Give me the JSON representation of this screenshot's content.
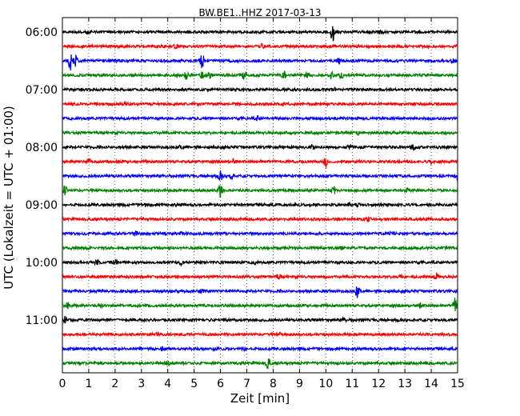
{
  "chart_data": {
    "type": "line",
    "title": "BW.BE1..HHZ 2017-03-13",
    "xlabel": "Zeit  [min]",
    "ylabel": "UTC (Lokalzeit = UTC + 01:00)",
    "xlim": [
      0,
      15
    ],
    "x_ticks": [
      "0",
      "1",
      "2",
      "3",
      "4",
      "5",
      "6",
      "7",
      "8",
      "9",
      "10",
      "11",
      "12",
      "13",
      "14",
      "15"
    ],
    "y_tick_labels": [
      "06:00",
      "07:00",
      "08:00",
      "09:00",
      "10:00",
      "11:00"
    ],
    "grid": "vertical dotted at each minute",
    "trace_colors": [
      "#000000",
      "#ff0000",
      "#0000ff",
      "#008000"
    ],
    "traces": [
      {
        "start": "06:00",
        "events": [
          [
            1.0,
            0.25
          ],
          [
            10.25,
            1.0
          ],
          [
            12.1,
            0.2
          ]
        ]
      },
      {
        "start": "06:15",
        "events": [
          [
            4.3,
            0.2
          ],
          [
            7.6,
            0.3
          ],
          [
            15.0,
            0.25
          ]
        ]
      },
      {
        "start": "06:30",
        "events": [
          [
            0.3,
            1.0
          ],
          [
            0.5,
            0.6
          ],
          [
            5.3,
            0.8
          ],
          [
            10.5,
            0.2
          ],
          [
            14.8,
            0.2
          ]
        ]
      },
      {
        "start": "06:45",
        "events": [
          [
            4.7,
            0.45
          ],
          [
            5.3,
            0.3
          ],
          [
            5.6,
            0.4
          ],
          [
            6.9,
            0.5
          ],
          [
            8.4,
            0.4
          ],
          [
            9.3,
            0.5
          ],
          [
            10.2,
            0.35
          ],
          [
            10.6,
            0.3
          ]
        ]
      },
      {
        "start": "07:00",
        "events": [
          [
            10.3,
            0.2
          ]
        ]
      },
      {
        "start": "07:15",
        "events": [
          [
            2.4,
            0.2
          ]
        ]
      },
      {
        "start": "07:30",
        "events": [
          [
            7.4,
            0.2
          ]
        ]
      },
      {
        "start": "07:45",
        "events": [
          [
            11.2,
            0.2
          ],
          [
            14.5,
            0.15
          ]
        ]
      },
      {
        "start": "08:00",
        "events": [
          [
            4.5,
            0.15
          ],
          [
            9.5,
            0.25
          ],
          [
            10.9,
            0.2
          ],
          [
            13.3,
            0.3
          ]
        ]
      },
      {
        "start": "08:15",
        "events": [
          [
            1.0,
            0.25
          ],
          [
            6.5,
            0.2
          ],
          [
            10.0,
            0.6
          ],
          [
            14.0,
            0.15
          ]
        ]
      },
      {
        "start": "08:30",
        "events": [
          [
            6.0,
            0.5
          ],
          [
            6.4,
            0.35
          ],
          [
            15.0,
            0.45
          ]
        ]
      },
      {
        "start": "08:45",
        "events": [
          [
            0.1,
            0.45
          ],
          [
            6.0,
            1.0
          ],
          [
            10.3,
            0.35
          ],
          [
            13.1,
            0.2
          ]
        ]
      },
      {
        "start": "09:00",
        "events": [
          [
            3.1,
            0.25
          ],
          [
            10.9,
            0.2
          ],
          [
            11.2,
            0.15
          ]
        ]
      },
      {
        "start": "09:15",
        "events": [
          [
            11.6,
            0.2
          ]
        ]
      },
      {
        "start": "09:30",
        "events": [
          [
            2.8,
            0.2
          ],
          [
            4.5,
            0.15
          ],
          [
            12.5,
            0.15
          ]
        ]
      },
      {
        "start": "09:45",
        "events": [
          [
            10.6,
            0.15
          ]
        ]
      },
      {
        "start": "10:00",
        "events": [
          [
            1.3,
            0.25
          ],
          [
            2.0,
            0.3
          ],
          [
            4.5,
            0.2
          ],
          [
            7.3,
            0.2
          ]
        ]
      },
      {
        "start": "10:15",
        "events": [
          [
            8.2,
            0.3
          ],
          [
            12.8,
            0.25
          ],
          [
            14.2,
            0.35
          ]
        ]
      },
      {
        "start": "10:30",
        "events": [
          [
            5.3,
            0.25
          ],
          [
            11.2,
            0.6
          ]
        ]
      },
      {
        "start": "10:45",
        "events": [
          [
            0.2,
            0.25
          ],
          [
            1.5,
            0.15
          ],
          [
            13.6,
            0.2
          ],
          [
            14.9,
            0.7
          ]
        ]
      },
      {
        "start": "11:00",
        "events": [
          [
            0.1,
            0.35
          ],
          [
            10.7,
            0.2
          ]
        ]
      },
      {
        "start": "11:15",
        "events": [
          [
            3.6,
            0.25
          ],
          [
            8.3,
            0.2
          ]
        ]
      },
      {
        "start": "11:30",
        "events": [
          [
            3.8,
            0.2
          ],
          [
            5.8,
            0.15
          ],
          [
            6.9,
            0.25
          ]
        ]
      },
      {
        "start": "11:45",
        "events": [
          [
            4.0,
            0.2
          ],
          [
            7.8,
            0.5
          ]
        ]
      }
    ]
  }
}
